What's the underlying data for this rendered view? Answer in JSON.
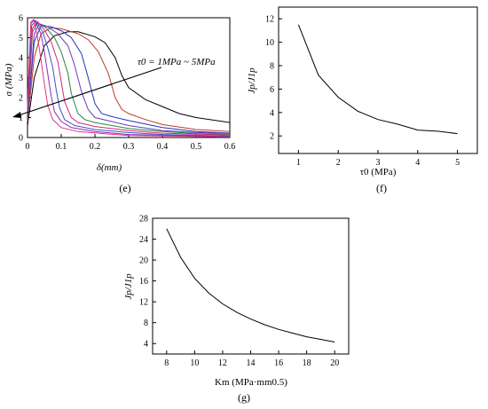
{
  "chart_data": [
    {
      "panel_label": "(e)",
      "type": "line",
      "xlabel": "δ(mm)",
      "ylabel": "σ (MPa)",
      "xlim": [
        0,
        0.6
      ],
      "ylim": [
        0,
        6
      ],
      "xticks": [
        "0",
        "0.1",
        "0.2",
        "0.3",
        "0.4",
        "0.5",
        "0.6"
      ],
      "yticks": [
        "0",
        "1",
        "2",
        "3",
        "4",
        "5",
        "6"
      ],
      "annotation": "τ0 = 1MPa ~ 5MPa",
      "grid": false,
      "series": [
        {
          "color": "#000000",
          "points": [
            [
              0,
              0.6
            ],
            [
              0.02,
              3.0
            ],
            [
              0.05,
              4.6
            ],
            [
              0.08,
              5.1
            ],
            [
              0.12,
              5.3
            ],
            [
              0.15,
              5.3
            ],
            [
              0.2,
              5.05
            ],
            [
              0.23,
              4.75
            ],
            [
              0.26,
              4.0
            ],
            [
              0.28,
              3.1
            ],
            [
              0.3,
              2.5
            ],
            [
              0.35,
              1.9
            ],
            [
              0.4,
              1.55
            ],
            [
              0.45,
              1.2
            ],
            [
              0.5,
              1.0
            ],
            [
              0.6,
              0.75
            ]
          ]
        },
        {
          "color": "#c0392b",
          "points": [
            [
              0,
              0.8
            ],
            [
              0.02,
              4.0
            ],
            [
              0.04,
              5.2
            ],
            [
              0.07,
              5.5
            ],
            [
              0.1,
              5.45
            ],
            [
              0.15,
              5.2
            ],
            [
              0.18,
              4.9
            ],
            [
              0.21,
              4.3
            ],
            [
              0.24,
              3.2
            ],
            [
              0.26,
              2.0
            ],
            [
              0.28,
              1.4
            ],
            [
              0.3,
              1.2
            ],
            [
              0.35,
              0.9
            ],
            [
              0.4,
              0.65
            ],
            [
              0.5,
              0.4
            ],
            [
              0.6,
              0.3
            ]
          ]
        },
        {
          "color": "#2136b6",
          "points": [
            [
              0,
              1.0
            ],
            [
              0.02,
              4.8
            ],
            [
              0.04,
              5.6
            ],
            [
              0.07,
              5.55
            ],
            [
              0.1,
              5.35
            ],
            [
              0.13,
              5.0
            ],
            [
              0.16,
              4.2
            ],
            [
              0.18,
              3.0
            ],
            [
              0.2,
              1.7
            ],
            [
              0.22,
              1.2
            ],
            [
              0.25,
              1.05
            ],
            [
              0.3,
              0.85
            ],
            [
              0.4,
              0.5
            ],
            [
              0.5,
              0.3
            ],
            [
              0.6,
              0.22
            ]
          ]
        },
        {
          "color": "#6a3bbd",
          "points": [
            [
              0,
              1.1
            ],
            [
              0.02,
              5.2
            ],
            [
              0.035,
              5.7
            ],
            [
              0.06,
              5.55
            ],
            [
              0.09,
              5.2
            ],
            [
              0.12,
              4.6
            ],
            [
              0.14,
              3.6
            ],
            [
              0.16,
              2.3
            ],
            [
              0.18,
              1.4
            ],
            [
              0.2,
              1.0
            ],
            [
              0.25,
              0.8
            ],
            [
              0.3,
              0.6
            ],
            [
              0.4,
              0.35
            ],
            [
              0.5,
              0.25
            ],
            [
              0.6,
              0.2
            ]
          ]
        },
        {
          "color": "#1e8b3c",
          "points": [
            [
              0,
              1.2
            ],
            [
              0.015,
              5.3
            ],
            [
              0.03,
              5.75
            ],
            [
              0.055,
              5.5
            ],
            [
              0.08,
              5.0
            ],
            [
              0.1,
              4.3
            ],
            [
              0.12,
              3.2
            ],
            [
              0.13,
              2.2
            ],
            [
              0.15,
              1.2
            ],
            [
              0.17,
              0.9
            ],
            [
              0.2,
              0.75
            ],
            [
              0.3,
              0.45
            ],
            [
              0.4,
              0.3
            ],
            [
              0.5,
              0.2
            ],
            [
              0.6,
              0.15
            ]
          ]
        },
        {
          "color": "#d6287a",
          "points": [
            [
              0,
              1.3
            ],
            [
              0.015,
              5.5
            ],
            [
              0.03,
              5.8
            ],
            [
              0.05,
              5.4
            ],
            [
              0.07,
              4.8
            ],
            [
              0.09,
              3.8
            ],
            [
              0.1,
              2.8
            ],
            [
              0.11,
              1.8
            ],
            [
              0.13,
              1.0
            ],
            [
              0.15,
              0.75
            ],
            [
              0.2,
              0.55
            ],
            [
              0.3,
              0.35
            ],
            [
              0.4,
              0.22
            ],
            [
              0.6,
              0.12
            ]
          ]
        },
        {
          "color": "#3f4fc9",
          "points": [
            [
              0,
              1.4
            ],
            [
              0.012,
              5.6
            ],
            [
              0.025,
              5.85
            ],
            [
              0.045,
              5.3
            ],
            [
              0.06,
              4.5
            ],
            [
              0.075,
              3.5
            ],
            [
              0.085,
              2.4
            ],
            [
              0.095,
              1.5
            ],
            [
              0.11,
              0.9
            ],
            [
              0.14,
              0.6
            ],
            [
              0.2,
              0.4
            ],
            [
              0.3,
              0.25
            ],
            [
              0.4,
              0.15
            ],
            [
              0.6,
              0.08
            ]
          ]
        },
        {
          "color": "#8a2bbd",
          "points": [
            [
              0,
              1.5
            ],
            [
              0.01,
              5.7
            ],
            [
              0.02,
              5.9
            ],
            [
              0.04,
              5.2
            ],
            [
              0.05,
              4.3
            ],
            [
              0.06,
              3.2
            ],
            [
              0.07,
              2.1
            ],
            [
              0.08,
              1.3
            ],
            [
              0.1,
              0.8
            ],
            [
              0.13,
              0.5
            ],
            [
              0.2,
              0.3
            ],
            [
              0.3,
              0.15
            ],
            [
              0.6,
              0.05
            ]
          ]
        },
        {
          "color": "#e0367f",
          "points": [
            [
              0,
              1.5
            ],
            [
              0.01,
              5.8
            ],
            [
              0.018,
              5.9
            ],
            [
              0.03,
              5.0
            ],
            [
              0.04,
              3.9
            ],
            [
              0.05,
              2.7
            ],
            [
              0.06,
              1.6
            ],
            [
              0.075,
              0.9
            ],
            [
              0.1,
              0.5
            ],
            [
              0.15,
              0.3
            ],
            [
              0.3,
              0.1
            ],
            [
              0.6,
              0.03
            ]
          ]
        }
      ]
    },
    {
      "panel_label": "(f)",
      "type": "line",
      "xlabel": "τ0 (MPa)",
      "ylabel": "Jp/J1p",
      "xlim": [
        0.5,
        5.5
      ],
      "ylim": [
        0.5,
        13
      ],
      "xticks": [
        "1",
        "2",
        "3",
        "4",
        "5"
      ],
      "yticks": [
        "2",
        "4",
        "6",
        "8",
        "10",
        "12"
      ],
      "grid": false,
      "series": [
        {
          "color": "#000000",
          "points": [
            [
              1,
              11.5
            ],
            [
              1.5,
              7.2
            ],
            [
              2,
              5.3
            ],
            [
              2.5,
              4.1
            ],
            [
              3,
              3.4
            ],
            [
              3.5,
              3.0
            ],
            [
              4,
              2.5
            ],
            [
              4.5,
              2.4
            ],
            [
              5,
              2.2
            ]
          ]
        }
      ]
    },
    {
      "panel_label": "(g)",
      "type": "line",
      "xlabel": "Km (MPa·mm0.5)",
      "ylabel": "Jp/J1p",
      "xlim": [
        7,
        21
      ],
      "ylim": [
        2,
        28
      ],
      "xticks": [
        "8",
        "10",
        "12",
        "14",
        "16",
        "18",
        "20"
      ],
      "yticks": [
        "4",
        "8",
        "12",
        "16",
        "20",
        "24",
        "28"
      ],
      "grid": false,
      "series": [
        {
          "color": "#000000",
          "points": [
            [
              8,
              26
            ],
            [
              9,
              20.5
            ],
            [
              10,
              16.5
            ],
            [
              11,
              13.7
            ],
            [
              12,
              11.6
            ],
            [
              13,
              10.0
            ],
            [
              14,
              8.7
            ],
            [
              15,
              7.6
            ],
            [
              16,
              6.7
            ],
            [
              17,
              6.0
            ],
            [
              18,
              5.3
            ],
            [
              19,
              4.8
            ],
            [
              20,
              4.3
            ]
          ]
        }
      ]
    }
  ]
}
